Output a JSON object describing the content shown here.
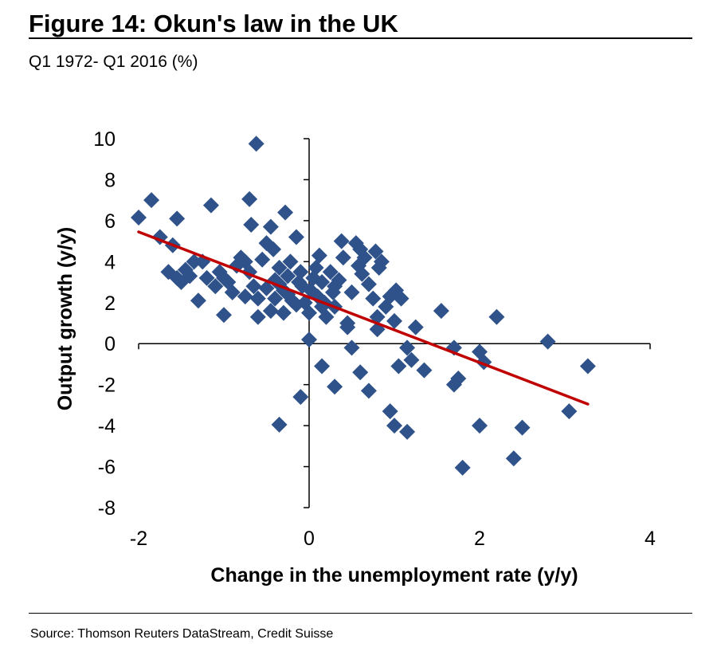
{
  "title": "Figure 14: Okun's law in the UK",
  "subtitle": "Q1 1972- Q1 2016 (%)",
  "source": "Source: Thomson Reuters DataStream, Credit Suisse",
  "colors": {
    "points": "#2e5289",
    "trend": "#c00000",
    "axis": "#000000"
  },
  "chart_data": {
    "type": "scatter",
    "xlabel": "Change in the unemployment rate (y/y)",
    "ylabel": "Output growth (y/y)",
    "xlim": [
      -2,
      4
    ],
    "ylim": [
      -8,
      10
    ],
    "xticks": [
      -2,
      0,
      2,
      4
    ],
    "yticks": [
      10,
      8,
      6,
      4,
      2,
      0,
      -2,
      -4,
      -6,
      -8
    ],
    "grid": false,
    "trendline": {
      "x": [
        -2,
        3.27
      ],
      "y": [
        5.45,
        -2.95
      ]
    },
    "points": [
      [
        -2.0,
        6.15
      ],
      [
        -1.85,
        7.0
      ],
      [
        -1.75,
        5.2
      ],
      [
        -1.6,
        4.8
      ],
      [
        -1.55,
        6.1
      ],
      [
        -1.65,
        3.5
      ],
      [
        -1.55,
        3.2
      ],
      [
        -1.5,
        3.0
      ],
      [
        -1.45,
        3.6
      ],
      [
        -1.4,
        3.3
      ],
      [
        -1.35,
        4.0
      ],
      [
        -1.3,
        2.1
      ],
      [
        -1.25,
        4.0
      ],
      [
        -1.2,
        3.2
      ],
      [
        -1.15,
        6.75
      ],
      [
        -1.1,
        2.8
      ],
      [
        -1.05,
        3.5
      ],
      [
        -1.0,
        3.2
      ],
      [
        -1.0,
        1.4
      ],
      [
        -0.95,
        3.0
      ],
      [
        -0.9,
        2.5
      ],
      [
        -0.85,
        3.8
      ],
      [
        -0.8,
        4.2
      ],
      [
        -0.75,
        4.0
      ],
      [
        -0.7,
        3.5
      ],
      [
        -0.65,
        2.8
      ],
      [
        -0.6,
        2.2
      ],
      [
        -0.75,
        2.3
      ],
      [
        -0.7,
        7.05
      ],
      [
        -0.68,
        5.8
      ],
      [
        -0.62,
        9.75
      ],
      [
        -0.55,
        4.1
      ],
      [
        -0.5,
        4.9
      ],
      [
        -0.45,
        5.7
      ],
      [
        -0.42,
        4.6
      ],
      [
        -0.4,
        3.1
      ],
      [
        -0.35,
        3.7
      ],
      [
        -0.3,
        2.6
      ],
      [
        -0.28,
        6.4
      ],
      [
        -0.25,
        3.3
      ],
      [
        -0.22,
        4.0
      ],
      [
        -0.2,
        2.1
      ],
      [
        -0.15,
        5.2
      ],
      [
        -0.12,
        3.0
      ],
      [
        -0.1,
        3.5
      ],
      [
        -0.05,
        2.0
      ],
      [
        0.0,
        1.5
      ],
      [
        0.02,
        2.6
      ],
      [
        0.05,
        3.2
      ],
      [
        0.08,
        3.7
      ],
      [
        0.1,
        2.3
      ],
      [
        0.12,
        4.3
      ],
      [
        0.15,
        3.0
      ],
      [
        0.18,
        2.0
      ],
      [
        0.2,
        1.3
      ],
      [
        0.25,
        3.5
      ],
      [
        0.28,
        2.5
      ],
      [
        0.3,
        1.8
      ],
      [
        0.35,
        3.1
      ],
      [
        0.38,
        5.0
      ],
      [
        0.4,
        4.2
      ],
      [
        0.45,
        1.0
      ],
      [
        0.5,
        2.5
      ],
      [
        0.55,
        4.9
      ],
      [
        0.58,
        3.8
      ],
      [
        0.6,
        4.6
      ],
      [
        0.62,
        3.4
      ],
      [
        0.65,
        4.2
      ],
      [
        0.7,
        2.9
      ],
      [
        0.75,
        2.2
      ],
      [
        0.78,
        4.5
      ],
      [
        0.8,
        0.7
      ],
      [
        0.82,
        3.7
      ],
      [
        0.85,
        4.0
      ],
      [
        0.9,
        1.8
      ],
      [
        0.95,
        2.3
      ],
      [
        1.0,
        1.1
      ],
      [
        1.02,
        2.6
      ],
      [
        1.08,
        2.2
      ],
      [
        -0.6,
        1.3
      ],
      [
        -0.5,
        2.7
      ],
      [
        -0.45,
        1.6
      ],
      [
        -0.4,
        2.2
      ],
      [
        -0.3,
        1.5
      ],
      [
        -0.35,
        2.9
      ],
      [
        -0.25,
        2.4
      ],
      [
        -0.15,
        1.9
      ],
      [
        -0.08,
        2.8
      ],
      [
        0.15,
        1.8
      ],
      [
        0.3,
        2.8
      ],
      [
        0.0,
        0.2
      ],
      [
        0.15,
        -1.1
      ],
      [
        0.3,
        -2.1
      ],
      [
        0.45,
        0.8
      ],
      [
        0.5,
        -0.2
      ],
      [
        0.6,
        -1.4
      ],
      [
        0.7,
        -2.3
      ],
      [
        0.8,
        1.3
      ],
      [
        1.05,
        -1.1
      ],
      [
        1.15,
        -0.2
      ],
      [
        1.2,
        -0.8
      ],
      [
        1.25,
        0.8
      ],
      [
        1.35,
        -1.3
      ],
      [
        1.55,
        1.6
      ],
      [
        1.7,
        -0.2
      ],
      [
        1.7,
        -2.0
      ],
      [
        1.75,
        -1.7
      ],
      [
        1.8,
        -6.05
      ],
      [
        2.0,
        -0.4
      ],
      [
        2.05,
        -0.9
      ],
      [
        2.0,
        -4.0
      ],
      [
        2.2,
        1.3
      ],
      [
        2.4,
        -5.6
      ],
      [
        2.5,
        -4.1
      ],
      [
        2.8,
        0.1
      ],
      [
        3.05,
        -3.3
      ],
      [
        3.27,
        -1.1
      ],
      [
        -0.1,
        -2.6
      ],
      [
        -0.35,
        -3.95
      ],
      [
        0.95,
        -3.3
      ],
      [
        1.0,
        -4.0
      ],
      [
        1.15,
        -4.3
      ]
    ]
  }
}
